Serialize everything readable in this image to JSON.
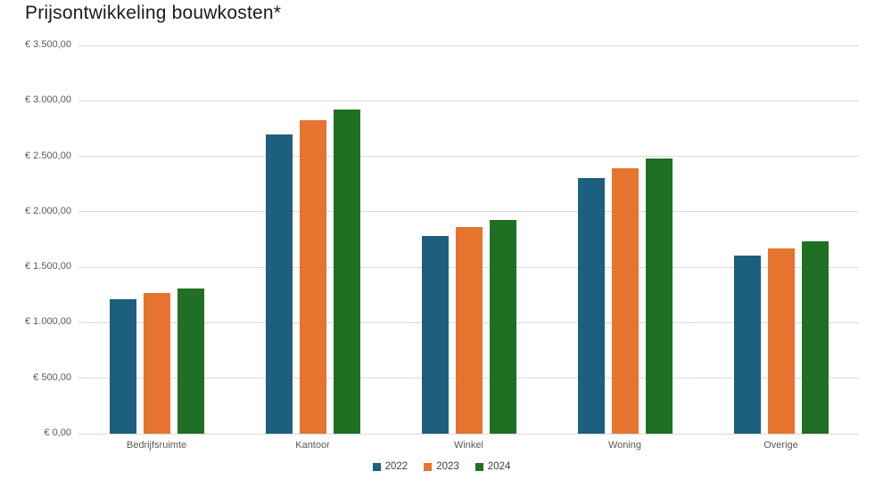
{
  "chart_data": {
    "type": "bar",
    "title": "Prijsontwikkeling bouwkosten*",
    "categories": [
      "Bedrijfsruimte",
      "Kantoor",
      "Winkel",
      "Woning",
      "Overige"
    ],
    "series": [
      {
        "name": "2022",
        "color": "#1C5F7E",
        "values": [
          1215,
          2700,
          1780,
          2300,
          1605
        ]
      },
      {
        "name": "2023",
        "color": "#E6732E",
        "values": [
          1265,
          2825,
          1865,
          2390,
          1670
        ]
      },
      {
        "name": "2024",
        "color": "#1F7023",
        "values": [
          1305,
          2925,
          1930,
          2480,
          1735
        ]
      }
    ],
    "xlabel": "",
    "ylabel": "",
    "ylim": [
      0,
      3500
    ],
    "y_tick_step": 500,
    "y_tick_labels": [
      "€ 0,00",
      "€ 500,00",
      "€ 1.000,00",
      "€ 1.500,00",
      "€ 2.000,00",
      "€ 2.500,00",
      "€ 3.000,00",
      "€ 3.500,00"
    ],
    "grid": "horizontal",
    "legend_position": "bottom",
    "colors": {
      "gridline": "#D9D9D9",
      "axis_text": "#595959",
      "legend_text": "#404040",
      "title_text": "#1A1A1A",
      "background": "#FFFFFF"
    }
  }
}
